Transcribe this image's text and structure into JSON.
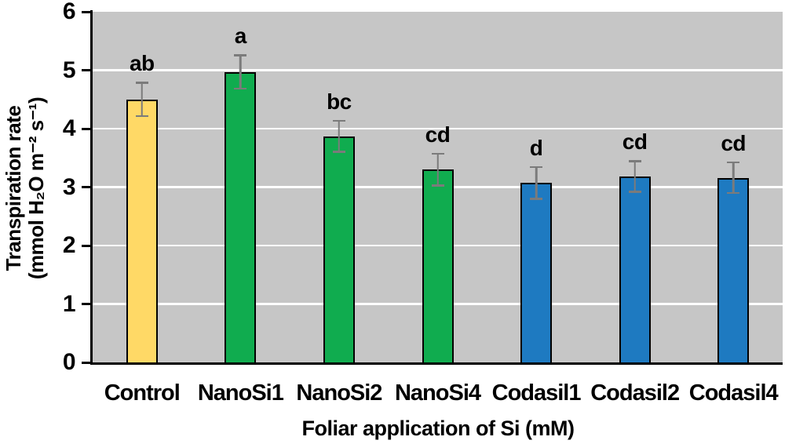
{
  "figure": {
    "background": "#ffffff",
    "plot_background": "#c6c6c6",
    "gridline_color": "#ffffff",
    "axis_color": "#000000",
    "bar_border_color": "#000000",
    "error_bar_color": "#7b7b7b"
  },
  "y_axis": {
    "title_line1": "Transpiration rate",
    "title_line2": "(mmol H₂O m⁻² s⁻¹)",
    "min": 0,
    "max": 6,
    "step": 1,
    "tick_labels": [
      "0",
      "1",
      "2",
      "3",
      "4",
      "5",
      "6"
    ]
  },
  "x_axis": {
    "title": "Foliar application of Si (mM)"
  },
  "chart_data": {
    "type": "bar",
    "title": "",
    "xlabel": "Foliar application of Si (mM)",
    "ylabel": "Transpiration rate (mmol H₂O m⁻² s⁻¹)",
    "ylim": [
      0,
      6
    ],
    "grid": true,
    "legend": false,
    "plot_area_style": "gray background with white horizontal gridlines",
    "categories": [
      "Control",
      "NanoSi1",
      "NanoSi2",
      "NanoSi4",
      "Codasil1",
      "Codasil2",
      "Codasil4"
    ],
    "values": [
      4.5,
      4.97,
      3.87,
      3.3,
      3.07,
      3.18,
      3.16
    ],
    "errors": [
      0.3,
      0.3,
      0.28,
      0.29,
      0.29,
      0.28,
      0.28
    ],
    "significance_letters": [
      "ab",
      "a",
      "bc",
      "cd",
      "d",
      "cd",
      "cd"
    ],
    "bar_colors": [
      "#ffd966",
      "#10ac4f",
      "#10ac4f",
      "#10ac4f",
      "#1e7ac1",
      "#1e7ac1",
      "#1e7ac1"
    ]
  }
}
